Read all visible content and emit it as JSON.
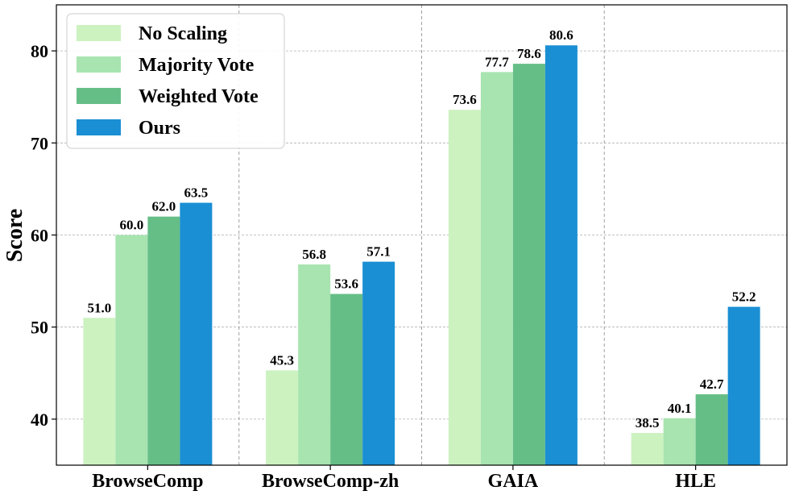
{
  "chart_data": {
    "type": "bar",
    "title": "",
    "xlabel": "",
    "ylabel": "Score",
    "ylim": [
      35,
      85
    ],
    "yticks": [
      40,
      50,
      60,
      70,
      80
    ],
    "grid": true,
    "legend_position": "top-left",
    "categories": [
      "BrowseComp",
      "BrowseComp-zh",
      "GAIA",
      "HLE"
    ],
    "series": [
      {
        "name": "No Scaling",
        "color": "#ccf2c0",
        "values": [
          51.0,
          45.3,
          73.6,
          38.5
        ]
      },
      {
        "name": "Majority Vote",
        "color": "#a8e4b0",
        "values": [
          60.0,
          56.8,
          77.7,
          40.1
        ]
      },
      {
        "name": "Weighted Vote",
        "color": "#66be87",
        "values": [
          62.0,
          53.6,
          78.6,
          42.7
        ]
      },
      {
        "name": "Ours",
        "color": "#1a8fd4",
        "values": [
          63.5,
          57.1,
          80.6,
          52.2
        ]
      }
    ]
  }
}
